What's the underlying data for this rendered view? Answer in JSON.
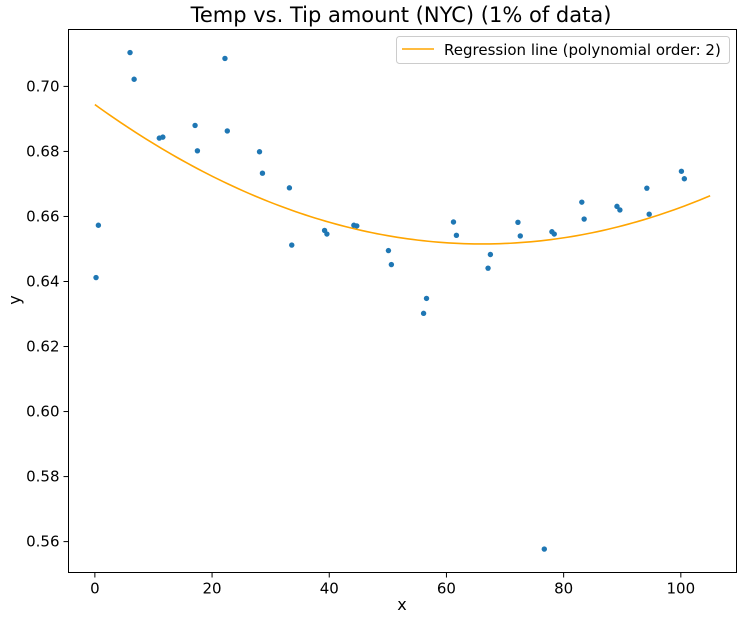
{
  "chart_data": {
    "type": "scatter",
    "title": "Temp vs. Tip amount (NYC) (1% of data)",
    "xlabel": "x",
    "ylabel": "y",
    "xlim": [
      -4.5,
      109.5
    ],
    "ylim": [
      0.5505,
      0.7175
    ],
    "xticks": [
      0,
      20,
      40,
      60,
      80,
      100
    ],
    "xtick_labels": [
      "0",
      "20",
      "40",
      "60",
      "80",
      "100"
    ],
    "yticks": [
      0.56,
      0.58,
      0.6,
      0.62,
      0.64,
      0.66,
      0.68,
      0.7
    ],
    "ytick_labels": [
      "0.56",
      "0.58",
      "0.60",
      "0.62",
      "0.64",
      "0.66",
      "0.68",
      "0.70"
    ],
    "grid": false,
    "legend_position": "top-right",
    "series": [
      {
        "type": "scatter",
        "color": "#1f77b4",
        "points": [
          [
            0.2,
            0.6412
          ],
          [
            0.6,
            0.6573
          ],
          [
            6.0,
            0.7104
          ],
          [
            6.7,
            0.7022
          ],
          [
            11.0,
            0.6841
          ],
          [
            11.6,
            0.6844
          ],
          [
            17.1,
            0.688
          ],
          [
            17.5,
            0.6802
          ],
          [
            22.2,
            0.7086
          ],
          [
            22.6,
            0.6863
          ],
          [
            28.1,
            0.6799
          ],
          [
            28.6,
            0.6733
          ],
          [
            33.2,
            0.6688
          ],
          [
            33.6,
            0.6512
          ],
          [
            39.2,
            0.6557
          ],
          [
            39.6,
            0.6546
          ],
          [
            44.2,
            0.6573
          ],
          [
            44.7,
            0.6571
          ],
          [
            50.1,
            0.6495
          ],
          [
            50.6,
            0.6452
          ],
          [
            56.1,
            0.6302
          ],
          [
            56.6,
            0.6348
          ],
          [
            61.2,
            0.6583
          ],
          [
            61.7,
            0.6542
          ],
          [
            67.1,
            0.6441
          ],
          [
            67.5,
            0.6483
          ],
          [
            72.2,
            0.6582
          ],
          [
            72.6,
            0.654
          ],
          [
            76.7,
            0.5577
          ],
          [
            78.0,
            0.6553
          ],
          [
            78.4,
            0.6546
          ],
          [
            83.1,
            0.6644
          ],
          [
            83.5,
            0.6592
          ],
          [
            89.1,
            0.6631
          ],
          [
            89.6,
            0.662
          ],
          [
            94.2,
            0.6687
          ],
          [
            94.6,
            0.6607
          ],
          [
            100.1,
            0.6739
          ],
          [
            100.6,
            0.6716
          ]
        ]
      },
      {
        "type": "line",
        "name": "Regression line (polynomial order: 2)",
        "color": "#ffa500",
        "polynomial": {
          "a": 9.81e-06,
          "b": -0.001297,
          "c": 0.69441
        },
        "x_range": [
          0,
          105
        ]
      }
    ]
  }
}
